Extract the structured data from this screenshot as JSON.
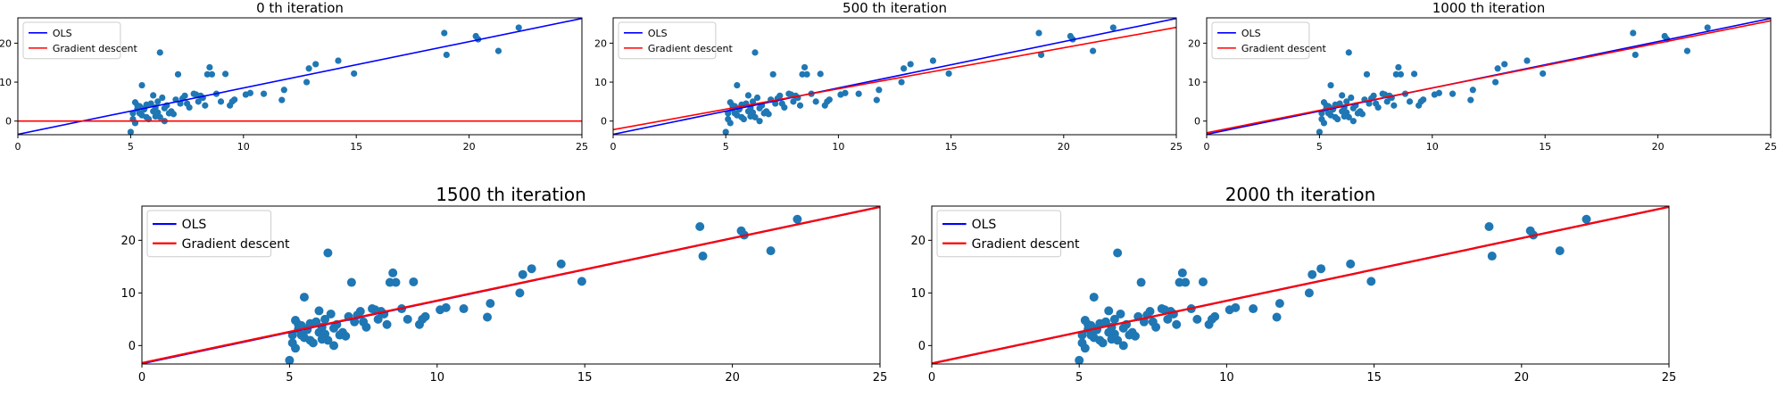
{
  "figure": {
    "colors": {
      "ols": "#0000ff",
      "gd": "#ff0000",
      "points": "#1f77b4"
    },
    "legend_placement": "top-left"
  },
  "points": {
    "x": [
      5.1,
      5.2,
      5.3,
      5.4,
      5.5,
      5.6,
      5.7,
      5.9,
      6.0,
      6.1,
      6.2,
      6.3,
      6.4,
      6.5,
      6.6,
      6.8,
      7.0,
      7.2,
      7.4,
      7.6,
      7.8,
      8.0,
      8.2,
      8.4,
      8.5,
      8.6,
      8.8,
      9.0,
      9.2,
      9.4,
      9.6,
      10.1,
      10.3,
      10.9,
      11.7,
      11.8,
      12.8,
      12.9,
      13.2,
      14.2,
      14.9,
      18.9,
      19.0,
      20.3,
      20.4,
      21.3,
      22.2,
      5.0,
      5.3,
      5.5,
      5.8,
      6.0,
      6.3,
      6.7,
      7.1,
      7.5,
      7.9,
      8.3,
      5.2,
      5.6,
      6.2,
      6.9,
      5.4,
      5.7,
      6.1,
      6.5,
      7.3,
      8.1,
      9.5,
      5.1
    ],
    "y": [
      0.5,
      -0.5,
      4.0,
      2.0,
      1.5,
      3.0,
      1.0,
      4.5,
      2.5,
      3.5,
      5.0,
      1.0,
      6.0,
      0.0,
      4.0,
      2.5,
      5.5,
      4.5,
      6.5,
      3.5,
      7.0,
      5.0,
      6.0,
      12.0,
      13.8,
      12.0,
      7.0,
      5.0,
      12.1,
      4.0,
      5.5,
      6.8,
      7.2,
      7.0,
      5.4,
      8.0,
      10.0,
      13.5,
      14.6,
      15.5,
      12.2,
      22.6,
      17.0,
      21.8,
      21.0,
      18.0,
      24.0,
      -2.8,
      3.1,
      9.2,
      0.5,
      6.6,
      17.6,
      2.0,
      12.0,
      4.5,
      6.8,
      4.0,
      4.8,
      3.2,
      2.2,
      1.8,
      3.8,
      4.2,
      1.2,
      3.3,
      5.8,
      6.5,
      5.0,
      2.0
    ]
  },
  "chart_data": [
    {
      "type": "scatter",
      "title": "0 th iteration",
      "xlim": [
        0,
        25
      ],
      "ylim": [
        -3.5,
        26.5
      ],
      "xticks": [
        "0",
        "5",
        "10",
        "15",
        "20",
        "25"
      ],
      "yticks": [
        "0",
        "10",
        "20"
      ],
      "legend": [
        "OLS",
        "Gradient descent"
      ],
      "series": [
        {
          "name": "OLS",
          "type": "line",
          "intercept": -3.4,
          "slope": 1.19
        },
        {
          "name": "Gradient descent",
          "type": "line",
          "intercept": 0.0,
          "slope": 0.0
        }
      ]
    },
    {
      "type": "scatter",
      "title": "500 th iteration",
      "xlim": [
        0,
        25
      ],
      "ylim": [
        -3.5,
        26.5
      ],
      "xticks": [
        "0",
        "5",
        "10",
        "15",
        "20",
        "25"
      ],
      "yticks": [
        "0",
        "10",
        "20"
      ],
      "legend": [
        "OLS",
        "Gradient descent"
      ],
      "series": [
        {
          "name": "OLS",
          "type": "line",
          "intercept": -3.4,
          "slope": 1.19
        },
        {
          "name": "Gradient descent",
          "type": "line",
          "intercept": -2.2,
          "slope": 1.05
        }
      ]
    },
    {
      "type": "scatter",
      "title": "1000 th iteration",
      "xlim": [
        0,
        25
      ],
      "ylim": [
        -3.5,
        26.5
      ],
      "xticks": [
        "0",
        "5",
        "10",
        "15",
        "20",
        "25"
      ],
      "yticks": [
        "0",
        "10",
        "20"
      ],
      "legend": [
        "OLS",
        "Gradient descent"
      ],
      "series": [
        {
          "name": "OLS",
          "type": "line",
          "intercept": -3.4,
          "slope": 1.19
        },
        {
          "name": "Gradient descent",
          "type": "line",
          "intercept": -3.0,
          "slope": 1.15
        }
      ]
    },
    {
      "type": "scatter",
      "title": "1500 th iteration",
      "xlim": [
        0,
        25
      ],
      "ylim": [
        -3.5,
        26.5
      ],
      "xticks": [
        "0",
        "5",
        "10",
        "15",
        "20",
        "25"
      ],
      "yticks": [
        "0",
        "10",
        "20"
      ],
      "legend": [
        "OLS",
        "Gradient descent"
      ],
      "series": [
        {
          "name": "OLS",
          "type": "line",
          "intercept": -3.4,
          "slope": 1.19
        },
        {
          "name": "Gradient descent",
          "type": "line",
          "intercept": -3.3,
          "slope": 1.185
        }
      ]
    },
    {
      "type": "scatter",
      "title": "2000 th iteration",
      "xlim": [
        0,
        25
      ],
      "ylim": [
        -3.5,
        26.5
      ],
      "xticks": [
        "0",
        "5",
        "10",
        "15",
        "20",
        "25"
      ],
      "yticks": [
        "0",
        "10",
        "20"
      ],
      "legend": [
        "OLS",
        "Gradient descent"
      ],
      "series": [
        {
          "name": "OLS",
          "type": "line",
          "intercept": -3.4,
          "slope": 1.19
        },
        {
          "name": "Gradient descent",
          "type": "line",
          "intercept": -3.4,
          "slope": 1.19
        }
      ]
    }
  ]
}
